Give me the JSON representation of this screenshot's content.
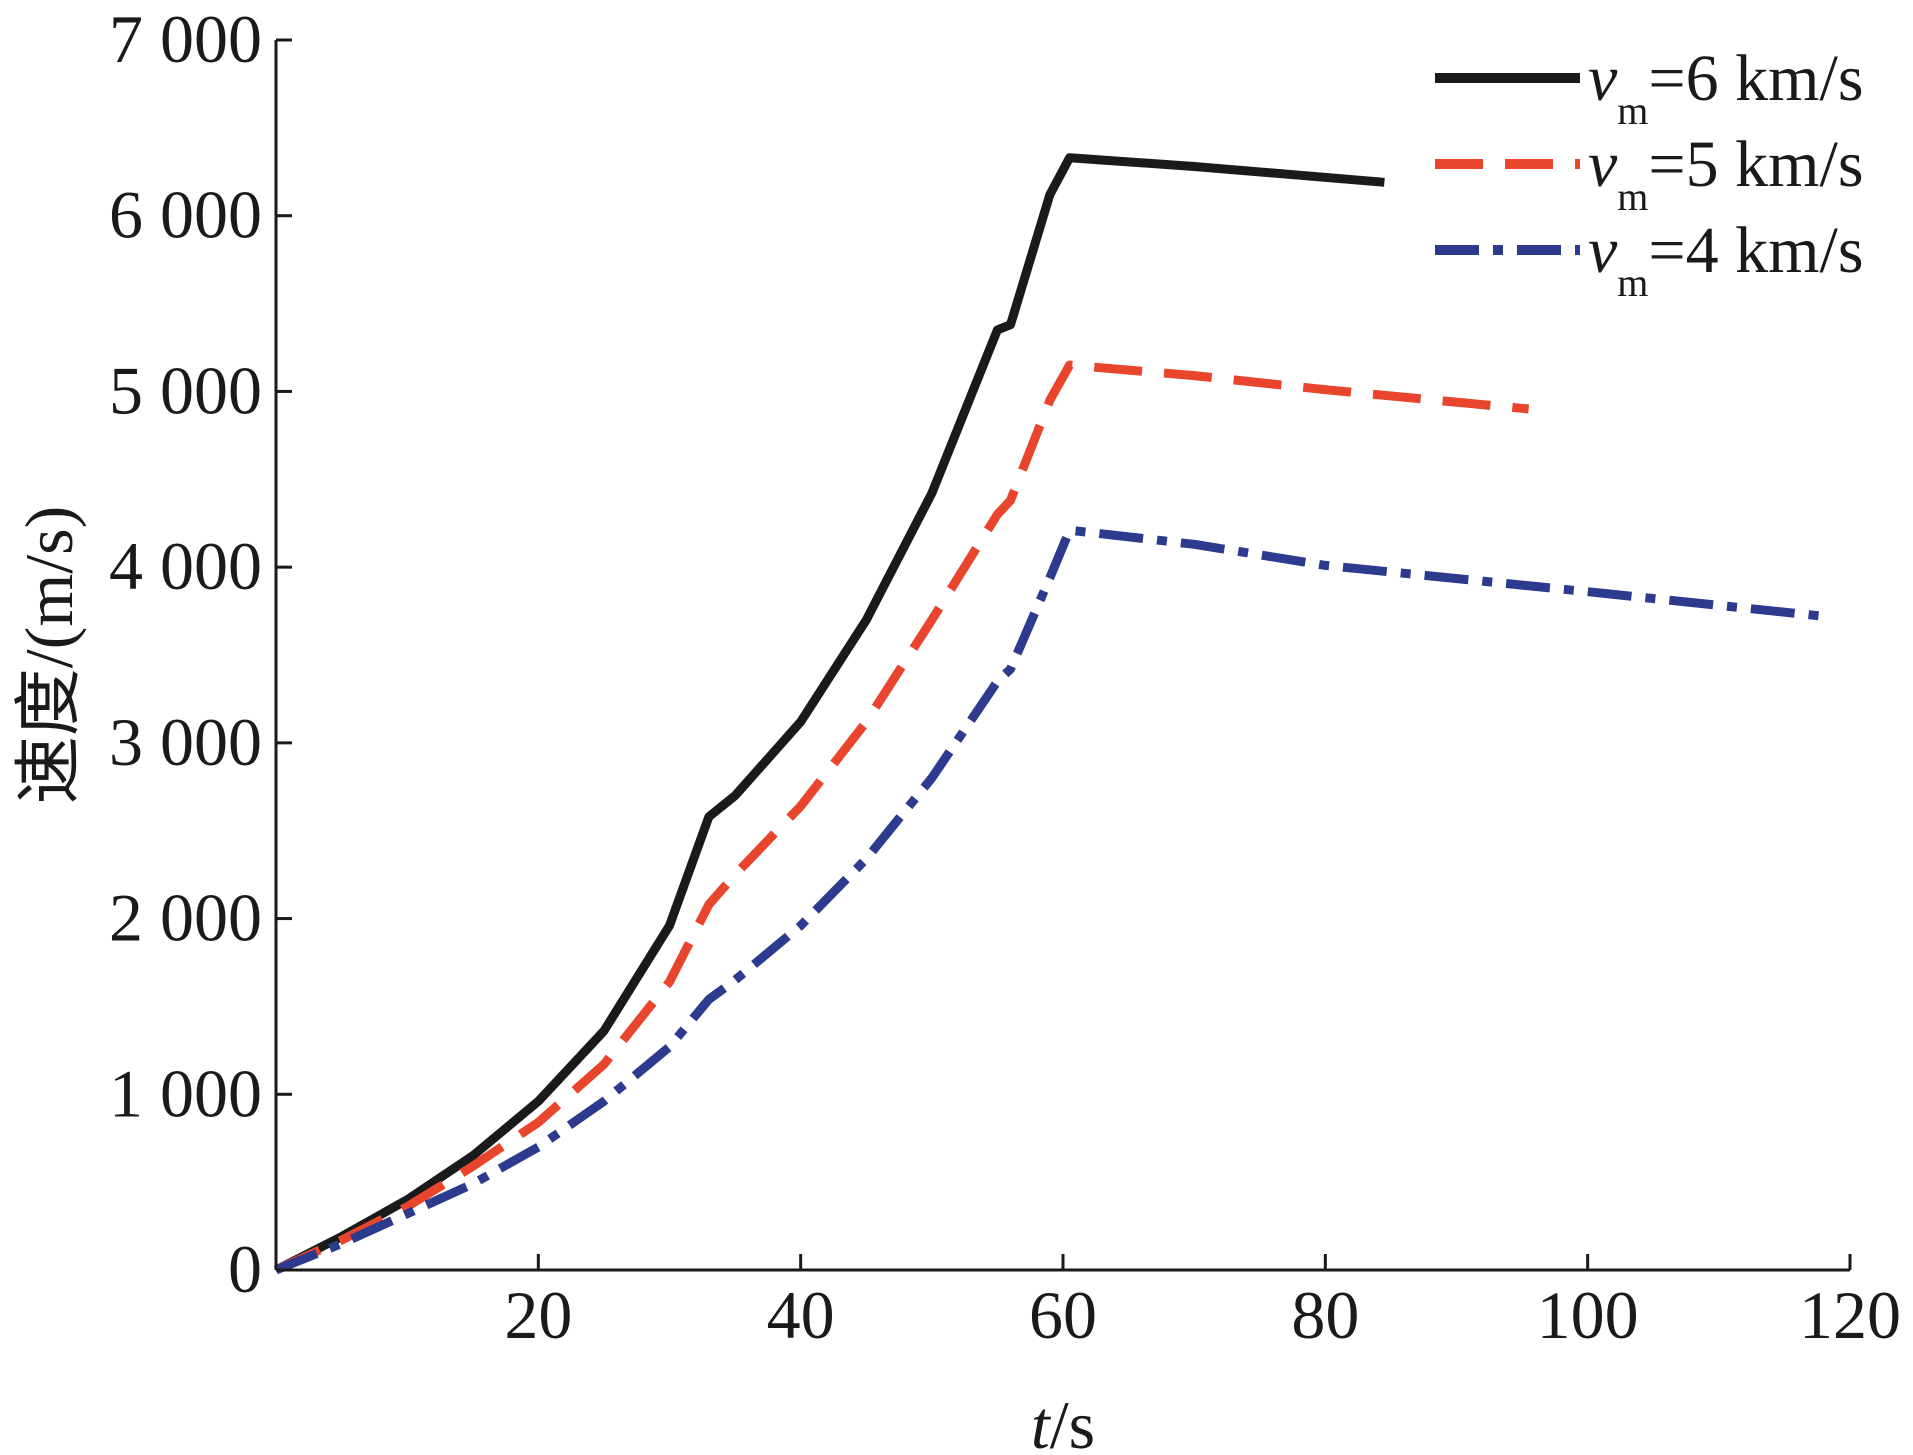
{
  "chart_data": {
    "type": "line",
    "xlabel": {
      "var": "t",
      "unit": "/s"
    },
    "ylabel": "速度/(m/s)",
    "xlim": [
      0,
      120
    ],
    "ylim": [
      0,
      7000
    ],
    "xticks": [
      20,
      40,
      60,
      80,
      100,
      120
    ],
    "xtick_labels": [
      "20",
      "40",
      "60",
      "80",
      "100",
      "120"
    ],
    "yticks": [
      0,
      1000,
      2000,
      3000,
      4000,
      5000,
      6000,
      7000
    ],
    "ytick_labels": [
      "0",
      "1 000",
      "2 000",
      "3 000",
      "4 000",
      "5 000",
      "6 000",
      "7 000"
    ],
    "grid": false,
    "legend_position": "top-right",
    "series": [
      {
        "name": "vm=6 km/s",
        "legend": {
          "var": "v",
          "sub": "m",
          "text": "=6 km/s"
        },
        "color": "#1a1a1a",
        "style": "solid",
        "points": [
          [
            0,
            0
          ],
          [
            5,
            190
          ],
          [
            10,
            400
          ],
          [
            15,
            650
          ],
          [
            20,
            960
          ],
          [
            25,
            1360
          ],
          [
            30,
            1960
          ],
          [
            33,
            2580
          ],
          [
            35,
            2700
          ],
          [
            40,
            3120
          ],
          [
            45,
            3700
          ],
          [
            50,
            4420
          ],
          [
            55,
            5350
          ],
          [
            56,
            5380
          ],
          [
            59,
            6120
          ],
          [
            60.5,
            6330
          ],
          [
            70,
            6280
          ],
          [
            84.5,
            6190
          ]
        ]
      },
      {
        "name": "vm=5 km/s",
        "legend": {
          "var": "v",
          "sub": "m",
          "text": "=5 km/s"
        },
        "color": "#e8452c",
        "style": "dashed",
        "points": [
          [
            0,
            0
          ],
          [
            5,
            170
          ],
          [
            10,
            360
          ],
          [
            15,
            590
          ],
          [
            20,
            840
          ],
          [
            25,
            1170
          ],
          [
            30,
            1640
          ],
          [
            33,
            2080
          ],
          [
            35,
            2250
          ],
          [
            40,
            2640
          ],
          [
            45,
            3120
          ],
          [
            50,
            3700
          ],
          [
            55,
            4300
          ],
          [
            56,
            4380
          ],
          [
            59,
            4950
          ],
          [
            60.5,
            5150
          ],
          [
            70,
            5090
          ],
          [
            80,
            5010
          ],
          [
            95.5,
            4900
          ]
        ]
      },
      {
        "name": "vm=4 km/s",
        "legend": {
          "var": "v",
          "sub": "m",
          "text": "=4 km/s"
        },
        "color": "#2d3b8e",
        "style": "dashdot",
        "points": [
          [
            0,
            0
          ],
          [
            5,
            150
          ],
          [
            10,
            320
          ],
          [
            15,
            490
          ],
          [
            20,
            700
          ],
          [
            25,
            960
          ],
          [
            30,
            1270
          ],
          [
            33,
            1540
          ],
          [
            35,
            1650
          ],
          [
            40,
            1960
          ],
          [
            45,
            2340
          ],
          [
            50,
            2800
          ],
          [
            55,
            3350
          ],
          [
            56,
            3420
          ],
          [
            59,
            3940
          ],
          [
            60.5,
            4210
          ],
          [
            70,
            4130
          ],
          [
            80,
            4010
          ],
          [
            100,
            3860
          ],
          [
            118,
            3720
          ]
        ]
      }
    ]
  }
}
